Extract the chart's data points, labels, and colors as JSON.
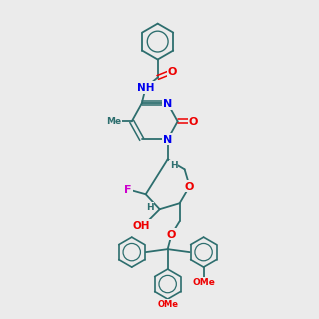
{
  "bg": "#ebebeb",
  "bc": "#2d6e6e",
  "NC": "#0000ee",
  "OC": "#ee0000",
  "FC": "#cc00cc",
  "CC": "#2d6e6e"
}
